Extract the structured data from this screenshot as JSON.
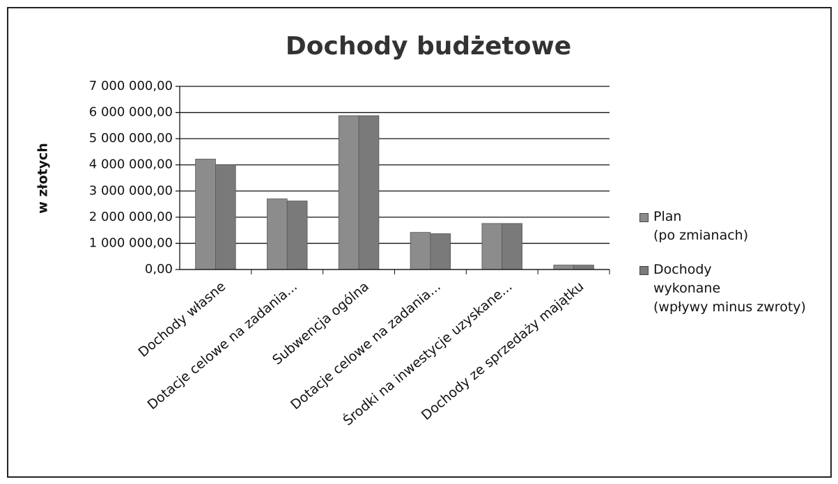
{
  "chart_data": {
    "type": "bar",
    "title": "Dochody budżetowe",
    "y_label": "w złotych",
    "categories": [
      "Dochody własne",
      "Dotacje celowe na zadania...",
      "Subwencja ogólna",
      "Dotacje celowe na zadania...",
      "Środki na inwestycje uzyskane...",
      "Dochody ze sprzedaży majątku"
    ],
    "series": [
      {
        "name": "Plan\n(po zmianach)",
        "color": "#8c8c8c",
        "values": [
          4220000,
          2700000,
          5880000,
          1420000,
          1760000,
          170000
        ]
      },
      {
        "name": "Dochody\nwykonane\n(wpływy minus zwroty)",
        "color": "#7a7a7a",
        "values": [
          4000000,
          2620000,
          5880000,
          1370000,
          1760000,
          170000
        ]
      }
    ],
    "ylim": [
      0,
      7000000
    ],
    "yticks": [
      {
        "value": 0,
        "label": "0,00"
      },
      {
        "value": 1000000,
        "label": "1 000 000,00"
      },
      {
        "value": 2000000,
        "label": "2 000 000,00"
      },
      {
        "value": 3000000,
        "label": "3 000 000,00"
      },
      {
        "value": 4000000,
        "label": "4 000 000,00"
      },
      {
        "value": 5000000,
        "label": "5 000 000,00"
      },
      {
        "value": 6000000,
        "label": "6 000 000,00"
      },
      {
        "value": 7000000,
        "label": "7 000 000,00"
      }
    ],
    "grid": true,
    "legend": "right"
  }
}
